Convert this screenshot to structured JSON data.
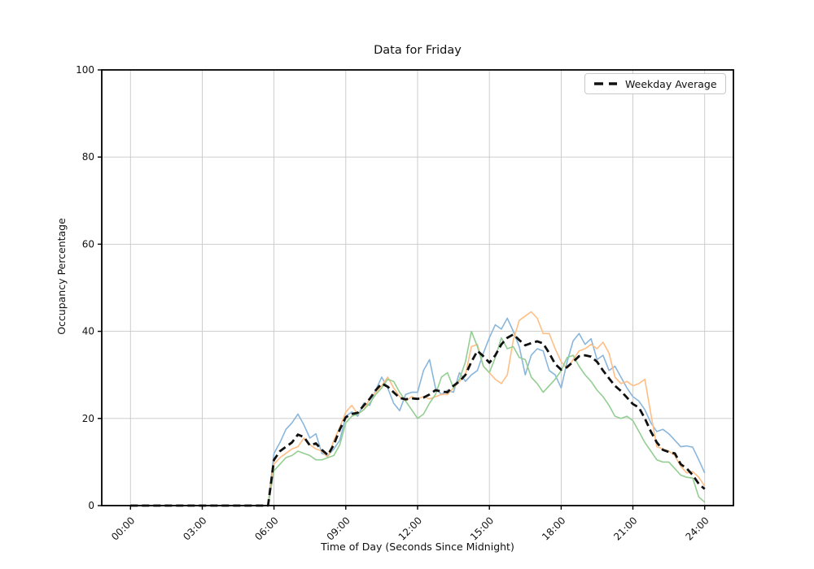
{
  "chart_data": {
    "type": "line",
    "title": "Data for Friday",
    "xlabel": "Time of Day (Seconds Since Midnight)",
    "ylabel": "Occupancy Percentage",
    "grid": true,
    "legend_position": "upper right",
    "legend": [
      {
        "label": "Weekday Average",
        "style": "dashed",
        "color": "#111111"
      }
    ],
    "ylim": [
      0,
      100
    ],
    "y_ticks": [
      0,
      20,
      40,
      60,
      80,
      100
    ],
    "x_tick_hours": [
      0,
      3,
      6,
      9,
      12,
      15,
      18,
      21,
      24
    ],
    "x_tick_labels": [
      "00:00",
      "03:00",
      "06:00",
      "09:00",
      "12:00",
      "15:00",
      "18:00",
      "21:00",
      "24:00"
    ],
    "xlim_hours": [
      -1.2,
      25.2
    ],
    "x_start_hour": 0,
    "x_step_hours": 0.25,
    "series": [
      {
        "name": "blue-line",
        "color": "#8ab6dc",
        "style": "solid",
        "width": 1.6,
        "values": [
          0,
          0,
          0,
          0,
          0,
          0,
          0,
          0,
          0,
          0,
          0,
          0,
          0,
          0,
          0,
          0,
          0,
          0,
          0,
          0,
          0,
          0,
          0,
          0,
          12,
          14.5,
          17.5,
          19,
          21,
          18.5,
          15.5,
          16.5,
          12,
          11.5,
          13,
          15,
          20.5,
          21.5,
          20.5,
          23.5,
          23,
          26.5,
          29.5,
          27,
          23.5,
          21.8,
          25.5,
          26,
          26,
          31,
          33.5,
          27,
          25.5,
          26.5,
          26,
          30.5,
          28.5,
          30,
          31,
          35,
          38.5,
          41.5,
          40.5,
          43,
          40,
          36.5,
          30,
          34.5,
          36,
          35.5,
          31,
          30,
          27,
          33,
          37.8,
          39.5,
          37,
          38.3,
          33.5,
          34.5,
          31,
          32,
          29.5,
          27,
          25,
          24,
          22,
          19,
          17,
          17.5,
          16.5,
          15,
          13.5,
          13.7,
          13.4,
          10.5,
          7.5
        ]
      },
      {
        "name": "orange-line",
        "color": "#ffbe85",
        "style": "solid",
        "width": 1.6,
        "values": [
          0,
          0,
          0,
          0,
          0,
          0,
          0,
          0,
          0,
          0,
          0,
          0,
          0,
          0,
          0,
          0,
          0,
          0,
          0,
          0,
          0,
          0,
          0,
          0,
          9.5,
          11,
          12,
          13,
          13.5,
          15.5,
          14,
          13,
          12.5,
          11,
          15,
          18,
          21.5,
          23,
          21,
          22,
          24.5,
          26,
          27.5,
          29.5,
          27,
          25,
          24,
          25,
          24.5,
          25,
          24.5,
          25,
          25.5,
          25.5,
          27,
          28.5,
          30,
          36.5,
          37,
          32,
          30.5,
          29,
          28,
          30,
          38,
          42.5,
          43.5,
          44.5,
          43,
          39.5,
          39.5,
          36,
          33,
          31.5,
          33.5,
          35.5,
          36,
          37,
          36,
          37.5,
          35,
          29.5,
          28,
          28.5,
          27.5,
          28,
          29,
          21,
          13.5,
          13,
          12.5,
          11.5,
          9,
          7.5,
          7.8,
          6.5,
          4.5
        ]
      },
      {
        "name": "green-line",
        "color": "#93ce92",
        "style": "solid",
        "width": 1.6,
        "values": [
          0,
          0,
          0,
          0,
          0,
          0,
          0,
          0,
          0,
          0,
          0,
          0,
          0,
          0,
          0,
          0,
          0,
          0,
          0,
          0,
          0,
          0,
          0,
          0,
          8,
          9.5,
          11,
          11.5,
          12.5,
          12,
          11.5,
          10.5,
          10.5,
          11,
          11.5,
          14,
          19,
          20.5,
          21,
          22,
          23.5,
          25.5,
          27,
          29,
          28.5,
          26,
          24,
          22,
          20,
          21,
          23.5,
          25.5,
          29.5,
          30.5,
          27,
          29,
          33,
          40,
          36.5,
          32,
          30.5,
          34,
          38.5,
          36,
          36.5,
          34,
          33.5,
          29.5,
          28,
          26,
          27.5,
          29,
          31,
          34,
          34.5,
          32,
          30,
          28.5,
          26.5,
          25,
          23,
          20.5,
          20,
          20.5,
          19.5,
          17,
          14.5,
          12.5,
          10.5,
          10,
          10,
          8.5,
          7,
          6.5,
          6.3,
          2,
          0.8
        ]
      },
      {
        "name": "Weekday Average",
        "color": "#111111",
        "style": "dashed",
        "width": 2.8,
        "in_legend": true,
        "values": [
          0,
          0,
          0,
          0,
          0,
          0,
          0,
          0,
          0,
          0,
          0,
          0,
          0,
          0,
          0,
          0,
          0,
          0,
          0,
          0,
          0,
          0,
          0,
          0,
          10.5,
          12.5,
          13.5,
          14.5,
          16.3,
          15.7,
          13.8,
          14.3,
          12.8,
          11.6,
          14,
          17.5,
          20.3,
          21,
          21.3,
          23,
          24.5,
          26.5,
          28,
          27.3,
          26,
          24.7,
          24.4,
          24.6,
          24.5,
          24.8,
          25.5,
          26.5,
          26.2,
          26,
          27.5,
          28.5,
          30,
          33,
          35.5,
          34.3,
          32.8,
          34.5,
          37,
          38.5,
          39.3,
          38,
          36.8,
          37.3,
          37.7,
          37.2,
          35,
          32.5,
          31.2,
          31.8,
          33,
          34.3,
          34.5,
          34.2,
          33,
          31,
          29.2,
          27.5,
          26.3,
          24.8,
          23.3,
          22.5,
          20,
          17,
          14.5,
          12.8,
          12.3,
          12,
          9.5,
          8.5,
          7,
          5,
          3.8
        ]
      }
    ],
    "colors": {
      "grid": "#c8c8c8",
      "spine": "#000000",
      "text": "#111111",
      "background": "#ffffff"
    }
  }
}
